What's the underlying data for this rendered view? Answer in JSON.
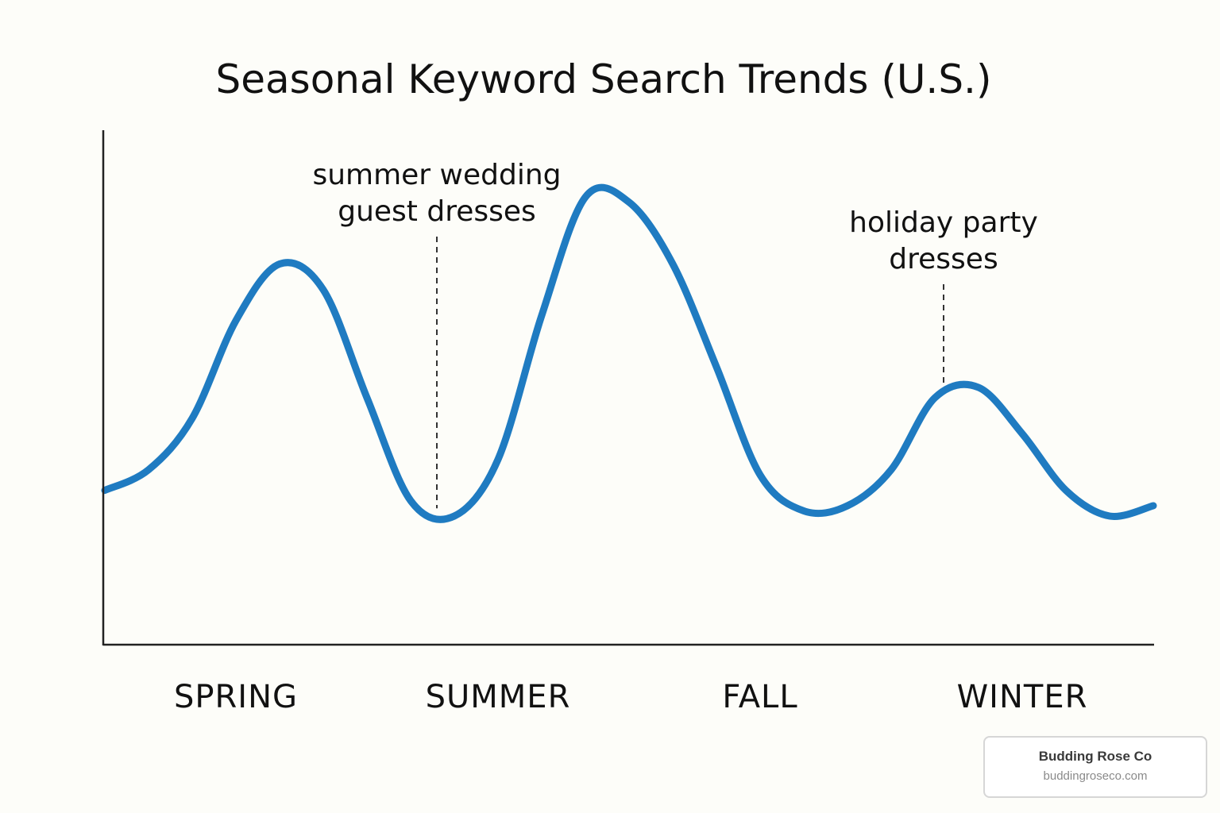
{
  "chart_data": {
    "type": "line",
    "title": "Seasonal Keyword Search Trends (U.S.)",
    "xlabel": "",
    "ylabel": "",
    "categories": [
      "SPRING",
      "SUMMER",
      "FALL",
      "WINTER"
    ],
    "x": [
      0,
      0.5,
      1,
      1.5,
      2,
      2.5,
      3,
      3.5,
      4,
      4.5,
      5,
      5.5,
      6,
      6.5,
      7,
      7.5,
      8,
      8.5,
      9,
      9.5,
      10,
      10.5,
      11,
      11.5,
      12
    ],
    "series": [
      {
        "values": [
          30,
          34,
          44,
          63,
          74,
          69,
          48,
          28,
          25,
          36,
          64,
          87,
          86,
          74,
          54,
          33,
          26,
          27,
          34,
          48,
          50,
          41,
          30,
          25,
          27
        ]
      }
    ],
    "xlim": [
      0,
      12
    ],
    "ylim": [
      0,
      100
    ],
    "grid": false,
    "legend": "none",
    "annotations": [
      {
        "text": "summer wedding guest dresses",
        "lines": [
          "summer wedding",
          "guest dresses"
        ],
        "x": 3.8
      },
      {
        "text": "holiday party dresses",
        "lines": [
          "holiday party",
          "dresses"
        ],
        "x": 9.6
      }
    ],
    "colors": {
      "line": "#1f7bc1",
      "axis": "#222222",
      "annotation_line": "#333333"
    }
  },
  "watermark": {
    "name": "Budding Rose Co",
    "url": "buddingroseco.com"
  }
}
